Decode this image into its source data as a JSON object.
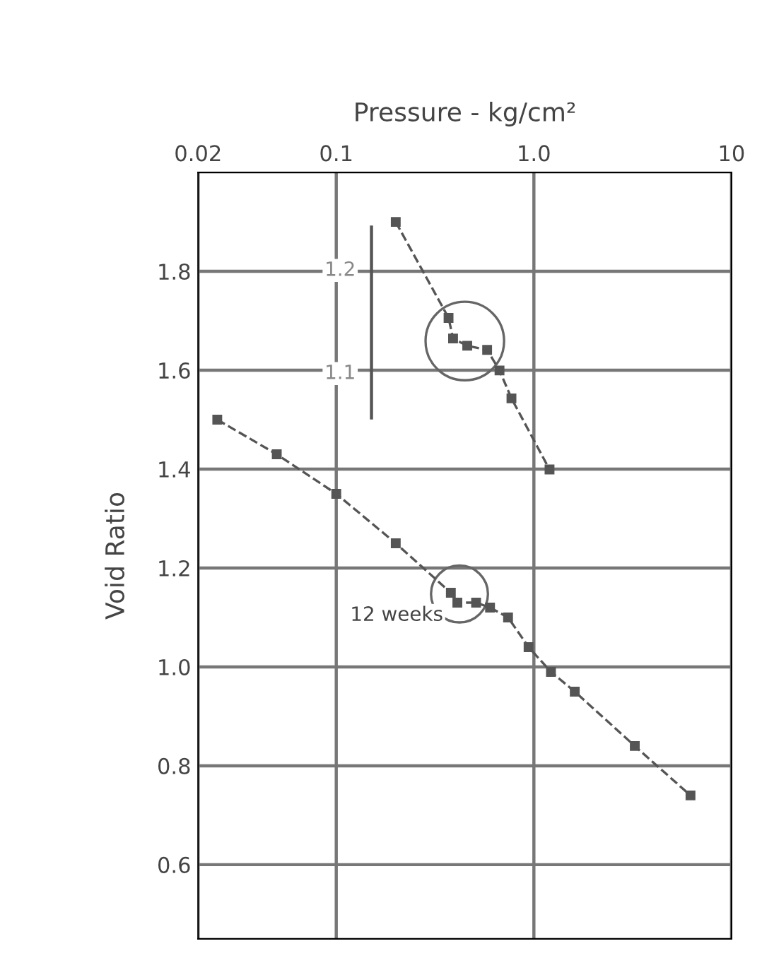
{
  "chart_data": {
    "type": "line",
    "xlabel": "Pressure - kg/cm²",
    "ylabel": "Void Ratio",
    "log": "x",
    "xlim": [
      0.02,
      10
    ],
    "xticks": [
      {
        "value": 0.02,
        "label": "0.02"
      },
      {
        "value": 0.1,
        "label": "0.1"
      },
      {
        "value": 1,
        "label": "1.0"
      },
      {
        "value": 10,
        "label": "10"
      }
    ],
    "ylim": [
      0.45,
      2.0
    ],
    "yticks": [
      {
        "value": 0.6,
        "label": "0.6"
      },
      {
        "value": 0.8,
        "label": "0.8"
      },
      {
        "value": 1.0,
        "label": "1.0"
      },
      {
        "value": 1.2,
        "label": "1.2"
      },
      {
        "value": 1.4,
        "label": "1.4"
      },
      {
        "value": 1.6,
        "label": "1.6"
      },
      {
        "value": 1.8,
        "label": "1.8"
      }
    ],
    "y2lim": [
      0.55,
      1.293
    ],
    "y2ticks": [
      1.1,
      1.2
    ],
    "grid": true,
    "marker": "square",
    "line_style": "dashed",
    "series": [
      {
        "color": "#555555",
        "x": [
          0.025,
          0.05,
          0.1,
          0.2,
          0.38,
          0.41,
          0.51,
          0.6,
          0.74,
          0.94,
          1.22,
          1.61,
          3.24,
          6.2
        ],
        "values": [
          1.5,
          1.43,
          1.35,
          1.25,
          1.15,
          1.13,
          1.13,
          1.12,
          1.1,
          1.04,
          0.99,
          0.95,
          0.84,
          0.74
        ]
      },
      {
        "color": "#555555",
        "axis": "y2",
        "x": [
          0.2,
          0.37,
          0.39,
          0.46,
          0.58,
          0.67,
          0.77,
          1.2
        ],
        "values": [
          1.245,
          1.152,
          1.132,
          1.125,
          1.121,
          1.101,
          1.074,
          1.005
        ]
      }
    ],
    "annotations": [
      "12 weeks"
    ]
  }
}
